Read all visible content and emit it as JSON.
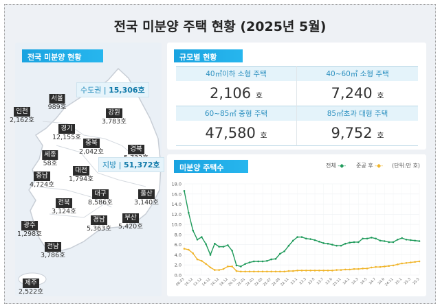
{
  "title": "전국 미분양 주택 현황 (2025년 5월)",
  "national": {
    "tag": "전국 미분양 현황",
    "capital": {
      "label": "수도권",
      "value": "15,306호"
    },
    "local": {
      "label": "지방",
      "value": "51,372호"
    },
    "regions": [
      {
        "name": "서울",
        "value": "989호"
      },
      {
        "name": "인천",
        "value": "2,162호"
      },
      {
        "name": "경기",
        "value": "12,155호"
      },
      {
        "name": "강원",
        "value": "3,783호"
      },
      {
        "name": "충북",
        "value": "2,042호"
      },
      {
        "name": "경북",
        "value": "5,732호"
      },
      {
        "name": "세종",
        "value": "58호"
      },
      {
        "name": "대전",
        "value": "1,794호"
      },
      {
        "name": "충남",
        "value": "4,724호"
      },
      {
        "name": "대구",
        "value": "8,586호"
      },
      {
        "name": "울산",
        "value": "3,140호"
      },
      {
        "name": "전북",
        "value": "3,124호"
      },
      {
        "name": "경남",
        "value": "5,363호"
      },
      {
        "name": "부산",
        "value": "5,420호"
      },
      {
        "name": "광주",
        "value": "1,298호"
      },
      {
        "name": "전남",
        "value": "3,786호"
      },
      {
        "name": "제주",
        "value": "2,522호"
      }
    ]
  },
  "size": {
    "tag": "규모별 현황",
    "unit": "호",
    "items": [
      {
        "label": "40㎡이하 소형 주택",
        "value": "2,106"
      },
      {
        "label": "40~60㎡ 소형 주택",
        "value": "7,240"
      },
      {
        "label": "60~85㎡ 중형 주택",
        "value": "47,580"
      },
      {
        "label": "85㎡초과 대형 주택",
        "value": "9,752"
      }
    ]
  },
  "chart_data": {
    "type": "line",
    "title": "미분양 주택수",
    "unit_note": "(단위:만 호)",
    "ylim": [
      0,
      18
    ],
    "yticks": [
      "0.0",
      "2.0",
      "4.0",
      "6.0",
      "8.0",
      "10.0",
      "12.0",
      "14.0",
      "16.0",
      "18.0"
    ],
    "x_ticks": [
      "08.03",
      "10.12",
      "12.12",
      "14.12",
      "16.12",
      "18.12",
      "20.12",
      "22.01",
      "22.03",
      "22.05",
      "22.07",
      "22.09",
      "22.11",
      "23.1",
      "23.3",
      "23.5",
      "23.7",
      "23.9",
      "23.11",
      "24.1",
      "24.3",
      "24.5",
      "24.7",
      "24.9",
      "24.11",
      "25.1",
      "25.3",
      "25.5"
    ],
    "grid": true,
    "legend_position": "top-right",
    "series": [
      {
        "name": "전체",
        "color": "#1e9a5a",
        "values": [
          16.6,
          12.3,
          8.8,
          7.0,
          7.5,
          6.1,
          4.0,
          6.2,
          5.6,
          5.6,
          5.9,
          4.8,
          1.9,
          1.7,
          2.2,
          2.5,
          2.7,
          2.7,
          2.7,
          2.8,
          3.1,
          3.2,
          4.2,
          4.7,
          5.8,
          6.8,
          7.5,
          7.5,
          7.2,
          7.1,
          6.9,
          6.6,
          6.3,
          6.2,
          6.0,
          5.8,
          5.8,
          6.2,
          6.4,
          6.5,
          6.5,
          7.2,
          7.2,
          7.4,
          7.2,
          6.8,
          6.7,
          6.5,
          6.5,
          7.0,
          7.3,
          7.0,
          6.9,
          6.8,
          6.7
        ]
      },
      {
        "name": "준공 후",
        "color": "#f0b429",
        "values": [
          5.2,
          5.0,
          4.3,
          3.1,
          2.8,
          2.2,
          1.5,
          1.0,
          1.0,
          1.2,
          1.7,
          1.7,
          0.8,
          0.7,
          0.7,
          0.7,
          0.7,
          0.7,
          0.7,
          0.7,
          0.7,
          0.7,
          0.7,
          0.7,
          0.8,
          0.8,
          0.9,
          0.9,
          0.9,
          0.9,
          0.9,
          0.9,
          0.9,
          0.9,
          0.9,
          1.0,
          1.0,
          1.1,
          1.1,
          1.2,
          1.2,
          1.3,
          1.3,
          1.5,
          1.6,
          1.6,
          1.7,
          1.8,
          1.9,
          2.1,
          2.3,
          2.4,
          2.5,
          2.6,
          2.7
        ]
      }
    ]
  }
}
